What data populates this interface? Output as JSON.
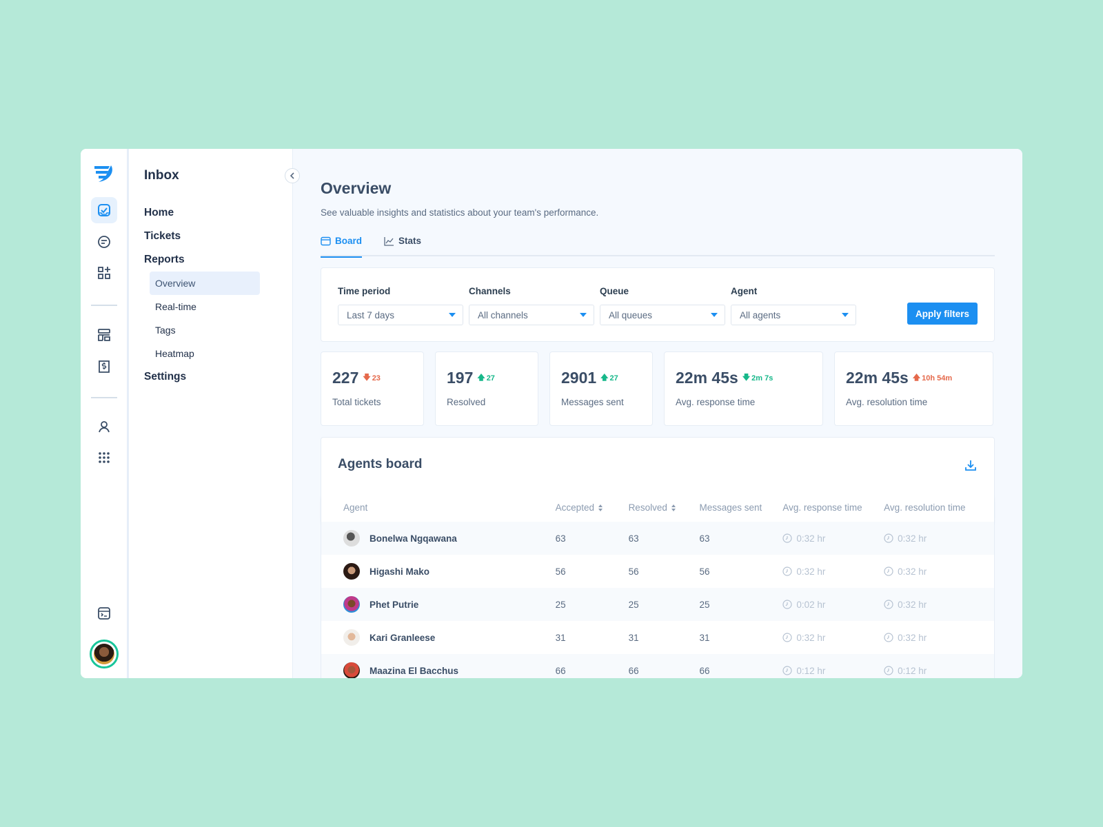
{
  "sidebar_nav": {
    "title": "Inbox",
    "items": [
      {
        "label": "Home"
      },
      {
        "label": "Tickets"
      },
      {
        "label": "Reports"
      }
    ],
    "report_items": [
      {
        "label": "Overview",
        "active": true
      },
      {
        "label": "Real-time"
      },
      {
        "label": "Tags"
      },
      {
        "label": "Heatmap"
      }
    ],
    "settings_label": "Settings"
  },
  "rail_icons": [
    "logo-icon",
    "inbox-check-icon",
    "chat-icon",
    "apps-add-icon",
    "layout-icon",
    "billing-icon",
    "user-icon",
    "grid-dots-icon",
    "terminal-icon"
  ],
  "main": {
    "title": "Overview",
    "subtitle": "See valuable insights and statistics about your team's performance.",
    "tabs": [
      {
        "label": "Board",
        "active": true
      },
      {
        "label": "Stats"
      }
    ]
  },
  "filters": {
    "time_period": {
      "label": "Time period",
      "value": "Last 7 days"
    },
    "channels": {
      "label": "Channels",
      "value": "All channels"
    },
    "queue": {
      "label": "Queue",
      "value": "All queues"
    },
    "agent": {
      "label": "Agent",
      "value": "All agents"
    },
    "apply_label": "Apply filters"
  },
  "stats": [
    {
      "value": "227",
      "delta": "23",
      "direction": "down",
      "label": "Total tickets"
    },
    {
      "value": "197",
      "delta": "27",
      "direction": "up",
      "label": "Resolved"
    },
    {
      "value": "2901",
      "delta": "27",
      "direction": "up",
      "label": "Messages sent"
    },
    {
      "value": "22m 45s",
      "delta": "2m 7s",
      "direction": "down",
      "label": "Avg. response time"
    },
    {
      "value": "22m 45s",
      "delta": "10h 54m",
      "direction": "up",
      "label": "Avg. resolution time"
    }
  ],
  "board": {
    "title": "Agents board",
    "columns": [
      "Agent",
      "Accepted",
      "Resolved",
      "Messages sent",
      "Avg. response time",
      "Avg. resolution time"
    ],
    "rows": [
      {
        "agent": "Bonelwa Ngqawana",
        "accepted": "63",
        "resolved": "63",
        "messages": "63",
        "avg_response": "0:32 hr",
        "avg_resolution": "0:32 hr"
      },
      {
        "agent": "Higashi Mako",
        "accepted": "56",
        "resolved": "56",
        "messages": "56",
        "avg_response": "0:32 hr",
        "avg_resolution": "0:32 hr"
      },
      {
        "agent": "Phet Putrie",
        "accepted": "25",
        "resolved": "25",
        "messages": "25",
        "avg_response": "0:02 hr",
        "avg_resolution": "0:32 hr"
      },
      {
        "agent": "Kari Granleese",
        "accepted": "31",
        "resolved": "31",
        "messages": "31",
        "avg_response": "0:32 hr",
        "avg_resolution": "0:32 hr"
      },
      {
        "agent": "Maazina El Bacchus",
        "accepted": "66",
        "resolved": "66",
        "messages": "66",
        "avg_response": "0:12 hr",
        "avg_resolution": "0:12 hr"
      }
    ]
  },
  "colors": {
    "accent": "#1c8ff1",
    "up": "#17b88a",
    "down": "#e5694b",
    "background": "#b5e9d8"
  }
}
